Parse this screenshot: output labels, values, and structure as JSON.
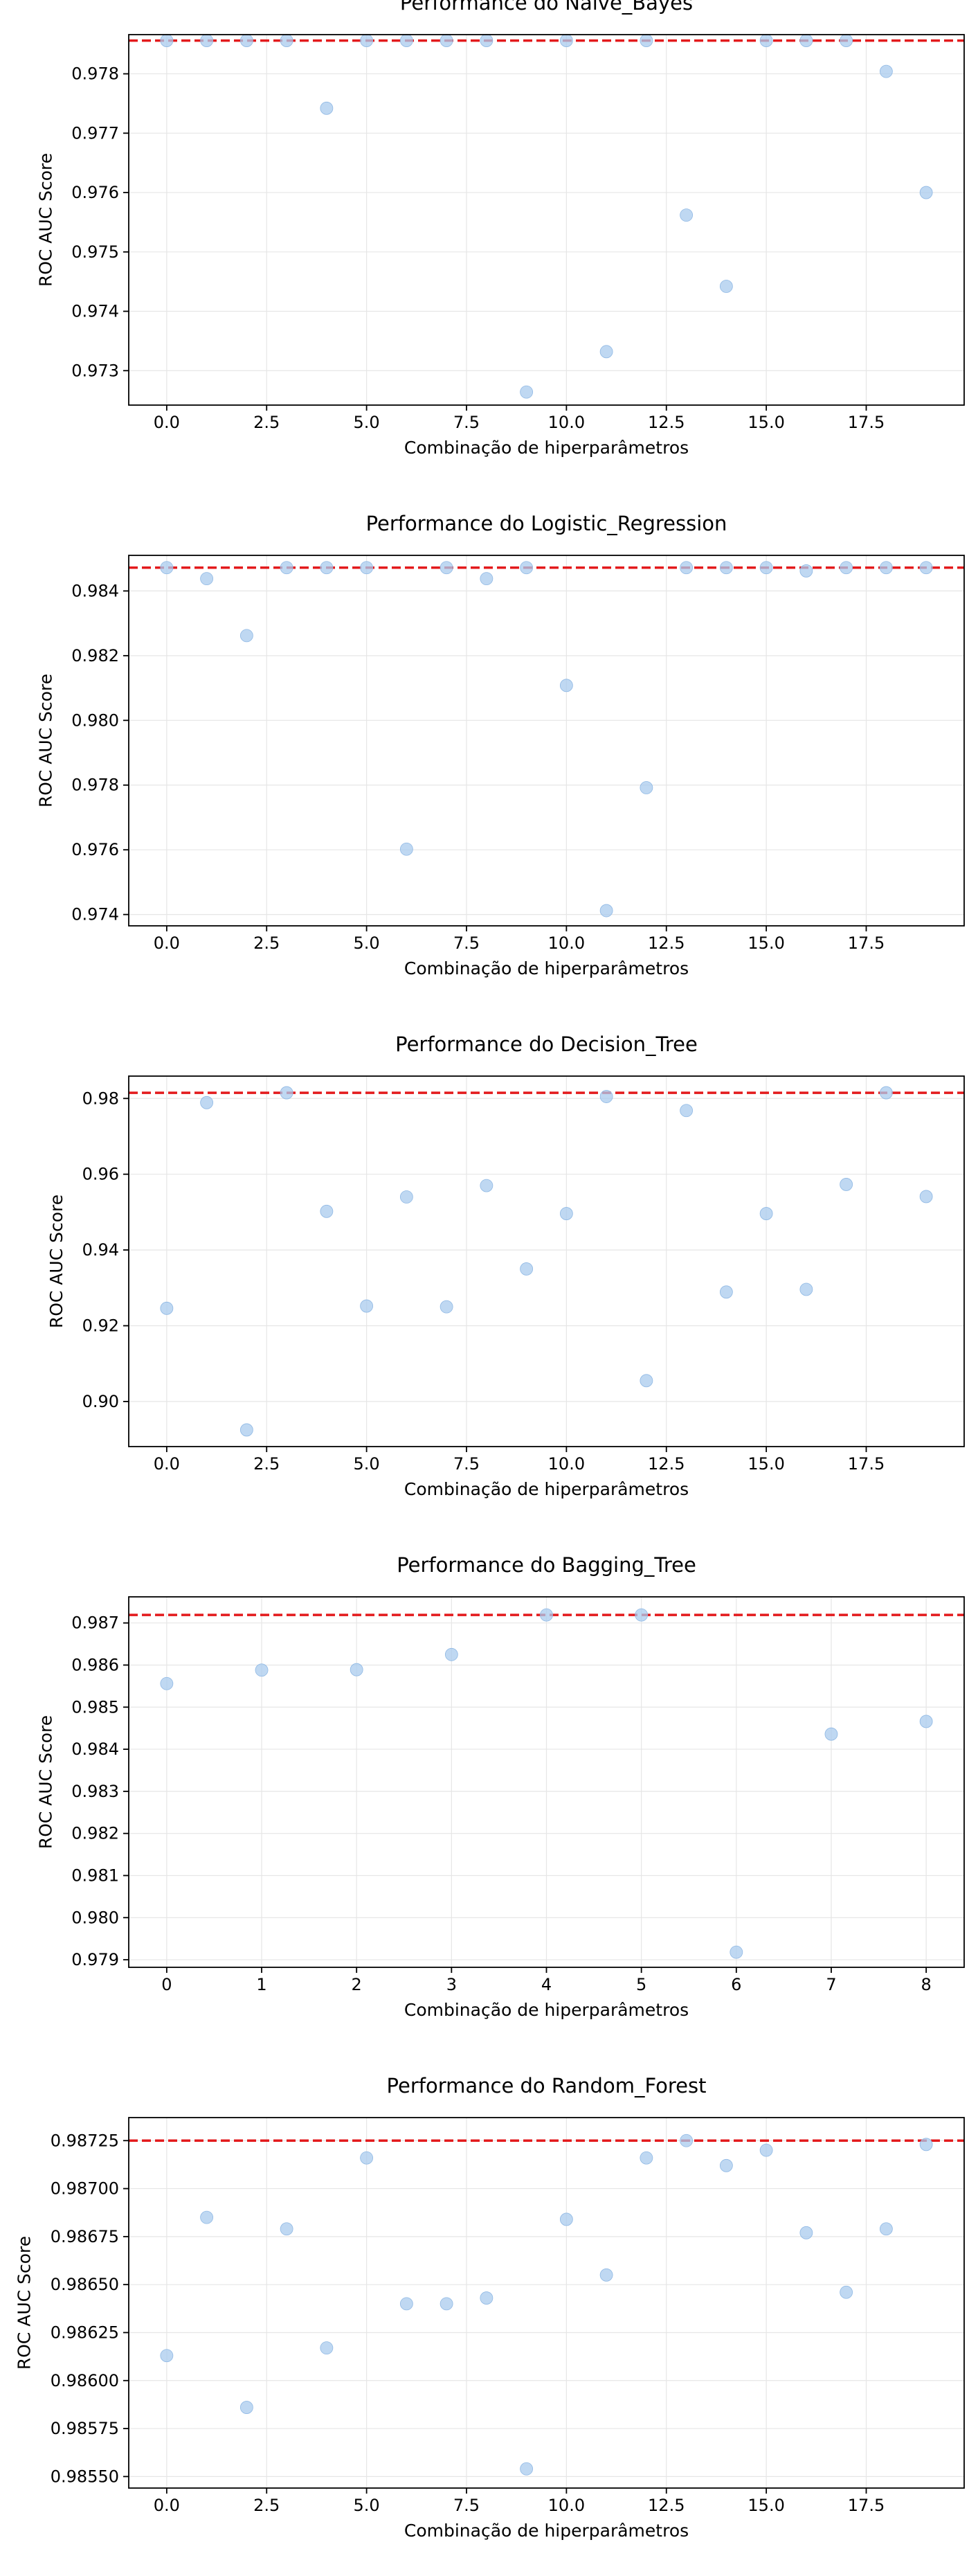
{
  "chart_data": [
    {
      "type": "scatter",
      "title": "Performance do Naive_Bayes",
      "xlabel": "Combinação de hiperparâmetros",
      "ylabel": "ROC AUC Score",
      "xlim": [
        -0.95,
        19.95
      ],
      "ylim": [
        0.97242,
        0.97866
      ],
      "xticks": [
        0,
        2.5,
        5,
        7.5,
        10,
        12.5,
        15,
        17.5
      ],
      "xtick_labels": [
        "0.0",
        "2.5",
        "5.0",
        "7.5",
        "10.0",
        "12.5",
        "15.0",
        "17.5"
      ],
      "yticks": [
        0.973,
        0.974,
        0.975,
        0.976,
        0.977,
        0.978
      ],
      "ytick_labels": [
        "0.973",
        "0.974",
        "0.975",
        "0.976",
        "0.977",
        "0.978"
      ],
      "x": [
        0,
        1,
        2,
        3,
        4,
        5,
        6,
        7,
        8,
        9,
        10,
        11,
        12,
        13,
        14,
        15,
        16,
        17,
        18,
        19
      ],
      "y": [
        0.97856,
        0.97856,
        0.97856,
        0.97856,
        0.97742,
        0.97856,
        0.97856,
        0.97856,
        0.97856,
        0.97264,
        0.97856,
        0.97332,
        0.97856,
        0.97562,
        0.97442,
        0.97856,
        0.97856,
        0.97856,
        0.97804,
        0.976
      ],
      "best_line": 0.97856,
      "grid": true
    },
    {
      "type": "scatter",
      "title": "Performance do Logistic_Regression",
      "xlabel": "Combinação de hiperparâmetros",
      "ylabel": "ROC AUC Score",
      "xlim": [
        -0.95,
        19.95
      ],
      "ylim": [
        0.97365,
        0.9851
      ],
      "xticks": [
        0,
        2.5,
        5,
        7.5,
        10,
        12.5,
        15,
        17.5
      ],
      "xtick_labels": [
        "0.0",
        "2.5",
        "5.0",
        "7.5",
        "10.0",
        "12.5",
        "15.0",
        "17.5"
      ],
      "yticks": [
        0.974,
        0.976,
        0.978,
        0.98,
        0.982,
        0.984
      ],
      "ytick_labels": [
        "0.974",
        "0.976",
        "0.978",
        "0.980",
        "0.982",
        "0.984"
      ],
      "x": [
        0,
        1,
        2,
        3,
        4,
        5,
        6,
        7,
        8,
        9,
        10,
        11,
        12,
        13,
        14,
        15,
        16,
        17,
        18,
        19
      ],
      "y": [
        0.98472,
        0.98438,
        0.98262,
        0.98472,
        0.98472,
        0.98472,
        0.97602,
        0.98472,
        0.98438,
        0.98472,
        0.98108,
        0.97412,
        0.97792,
        0.98472,
        0.98472,
        0.98472,
        0.98462,
        0.98472,
        0.98472,
        0.98472
      ],
      "best_line": 0.98472,
      "grid": true
    },
    {
      "type": "scatter",
      "title": "Performance do Decision_Tree",
      "xlabel": "Combinação de hiperparâmetros",
      "ylabel": "ROC AUC Score",
      "xlim": [
        -0.95,
        19.95
      ],
      "ylim": [
        0.8881,
        0.9859
      ],
      "xticks": [
        0,
        2.5,
        5,
        7.5,
        10,
        12.5,
        15,
        17.5
      ],
      "xtick_labels": [
        "0.0",
        "2.5",
        "5.0",
        "7.5",
        "10.0",
        "12.5",
        "15.0",
        "17.5"
      ],
      "yticks": [
        0.9,
        0.92,
        0.94,
        0.96,
        0.98
      ],
      "ytick_labels": [
        "0.90",
        "0.92",
        "0.94",
        "0.96",
        "0.98"
      ],
      "x": [
        0,
        1,
        2,
        3,
        4,
        5,
        6,
        7,
        8,
        9,
        10,
        11,
        12,
        13,
        14,
        15,
        16,
        17,
        18,
        19
      ],
      "y": [
        0.9246,
        0.9789,
        0.8925,
        0.9815,
        0.9502,
        0.9252,
        0.954,
        0.925,
        0.957,
        0.935,
        0.9496,
        0.9805,
        0.9055,
        0.9768,
        0.9289,
        0.9496,
        0.9296,
        0.9573,
        0.9815,
        0.9541
      ],
      "best_line": 0.9815,
      "grid": true
    },
    {
      "type": "scatter",
      "title": "Performance do Bagging_Tree",
      "xlabel": "Combinação de hiperparâmetros",
      "ylabel": "ROC AUC Score",
      "xlim": [
        -0.4,
        8.4
      ],
      "ylim": [
        0.97882,
        0.98762
      ],
      "xticks": [
        0,
        1,
        2,
        3,
        4,
        5,
        6,
        7,
        8
      ],
      "xtick_labels": [
        "0",
        "1",
        "2",
        "3",
        "4",
        "5",
        "6",
        "7",
        "8"
      ],
      "yticks": [
        0.979,
        0.98,
        0.981,
        0.982,
        0.983,
        0.984,
        0.985,
        0.986,
        0.987
      ],
      "ytick_labels": [
        "0.979",
        "0.980",
        "0.981",
        "0.982",
        "0.983",
        "0.984",
        "0.985",
        "0.986",
        "0.987"
      ],
      "x": [
        0,
        1,
        2,
        3,
        4,
        5,
        6,
        7,
        8
      ],
      "y": [
        0.98556,
        0.98588,
        0.98589,
        0.98625,
        0.98719,
        0.98719,
        0.97918,
        0.98436,
        0.98466
      ],
      "best_line": 0.98719,
      "grid": true
    },
    {
      "type": "scatter",
      "title": "Performance do Random_Forest",
      "xlabel": "Combinação de hiperparâmetros",
      "ylabel": "ROC AUC Score",
      "xlim": [
        -0.95,
        19.95
      ],
      "ylim": [
        0.98544,
        0.98737
      ],
      "xticks": [
        0,
        2.5,
        5,
        7.5,
        10,
        12.5,
        15,
        17.5
      ],
      "xtick_labels": [
        "0.0",
        "2.5",
        "5.0",
        "7.5",
        "10.0",
        "12.5",
        "15.0",
        "17.5"
      ],
      "yticks": [
        0.9855,
        0.98575,
        0.986,
        0.98625,
        0.9865,
        0.98675,
        0.987,
        0.98725
      ],
      "ytick_labels": [
        "0.98550",
        "0.98575",
        "0.98600",
        "0.98625",
        "0.98650",
        "0.98675",
        "0.98700",
        "0.98725"
      ],
      "x": [
        0,
        1,
        2,
        3,
        4,
        5,
        6,
        7,
        8,
        9,
        10,
        11,
        12,
        13,
        14,
        15,
        16,
        17,
        18,
        19
      ],
      "y": [
        0.98613,
        0.98685,
        0.98586,
        0.98679,
        0.98617,
        0.98716,
        0.9864,
        0.9864,
        0.98643,
        0.98554,
        0.98684,
        0.98655,
        0.98716,
        0.98725,
        0.98712,
        0.9872,
        0.98677,
        0.98646,
        0.98679,
        0.98723
      ],
      "best_line": 0.98725,
      "grid": true
    }
  ],
  "style": {
    "point_color": "#a9cbee",
    "point_edge": "#8fb8e4",
    "best_line_color": "#e31a1c",
    "grid_color": "#e6e6e6",
    "axis_color": "#000000"
  }
}
